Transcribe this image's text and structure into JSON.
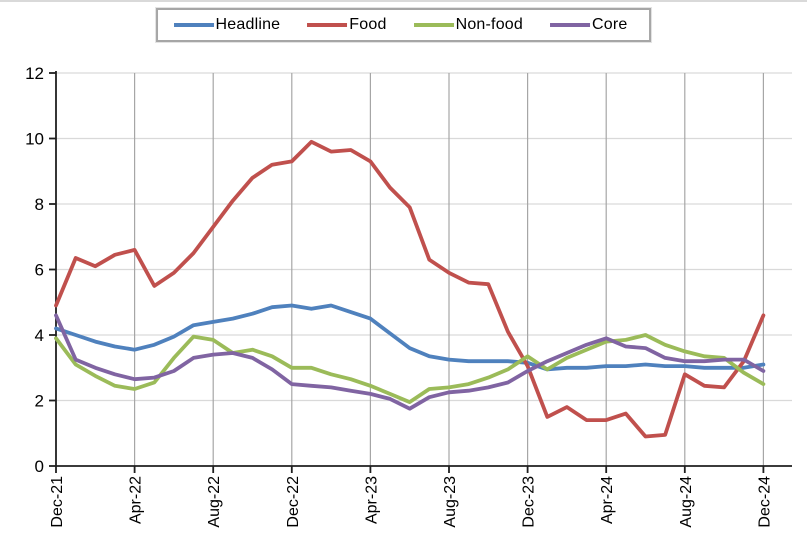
{
  "chart_data": {
    "type": "line",
    "title": "",
    "legend_position": "top-center",
    "ylim": [
      0,
      12
    ],
    "y_ticks": [
      "0",
      "2",
      "4",
      "6",
      "8",
      "10",
      "12"
    ],
    "x_tick_labels": [
      "Dec-21",
      "Apr-22",
      "Aug-22",
      "Dec-22",
      "Apr-23",
      "Aug-23",
      "Dec-23",
      "Apr-24",
      "Aug-24",
      "Dec-24"
    ],
    "x": [
      "Dec-21",
      "Jan-22",
      "Feb-22",
      "Mar-22",
      "Apr-22",
      "May-22",
      "Jun-22",
      "Jul-22",
      "Aug-22",
      "Sep-22",
      "Oct-22",
      "Nov-22",
      "Dec-22",
      "Jan-23",
      "Feb-23",
      "Mar-23",
      "Apr-23",
      "May-23",
      "Jun-23",
      "Jul-23",
      "Aug-23",
      "Sep-23",
      "Oct-23",
      "Nov-23",
      "Dec-23",
      "Jan-24",
      "Feb-24",
      "Mar-24",
      "Apr-24",
      "May-24",
      "Jun-24",
      "Jul-24",
      "Aug-24",
      "Sep-24",
      "Oct-24",
      "Nov-24",
      "Dec-24"
    ],
    "grid": {
      "horizontal_color": "#d9d9d9",
      "vertical_color": "#a6a6a6",
      "axis_color": "#1f1f1f"
    },
    "series": [
      {
        "name": "Headline",
        "color": "#4F81BD",
        "values": [
          4.2,
          4.0,
          3.8,
          3.65,
          3.55,
          3.7,
          3.95,
          4.3,
          4.4,
          4.5,
          4.65,
          4.85,
          4.9,
          4.8,
          4.9,
          4.7,
          4.5,
          4.05,
          3.6,
          3.35,
          3.25,
          3.2,
          3.2,
          3.2,
          3.15,
          2.95,
          3.0,
          3.0,
          3.05,
          3.05,
          3.1,
          3.05,
          3.05,
          3.0,
          3.0,
          3.0,
          3.1
        ]
      },
      {
        "name": "Food",
        "color": "#C0504D",
        "values": [
          4.9,
          6.35,
          6.1,
          6.45,
          6.6,
          5.5,
          5.9,
          6.5,
          7.3,
          8.1,
          8.8,
          9.2,
          9.3,
          9.9,
          9.6,
          9.65,
          9.3,
          8.5,
          7.9,
          6.3,
          5.9,
          5.6,
          5.55,
          4.1,
          3.05,
          1.5,
          1.8,
          1.4,
          1.4,
          1.6,
          0.9,
          0.95,
          2.8,
          2.45,
          2.4,
          3.2,
          4.6
        ]
      },
      {
        "name": "Non-food",
        "color": "#9BBB59",
        "values": [
          3.9,
          3.1,
          2.75,
          2.45,
          2.35,
          2.55,
          3.3,
          3.95,
          3.85,
          3.45,
          3.55,
          3.35,
          3.0,
          3.0,
          2.8,
          2.65,
          2.45,
          2.2,
          1.95,
          2.35,
          2.4,
          2.5,
          2.7,
          2.95,
          3.35,
          2.95,
          3.3,
          3.55,
          3.8,
          3.85,
          4.0,
          3.7,
          3.5,
          3.35,
          3.3,
          2.85,
          2.5
        ]
      },
      {
        "name": "Core",
        "color": "#8064A2",
        "values": [
          4.6,
          3.25,
          3.0,
          2.8,
          2.65,
          2.7,
          2.9,
          3.3,
          3.4,
          3.45,
          3.3,
          2.95,
          2.5,
          2.45,
          2.4,
          2.3,
          2.2,
          2.05,
          1.75,
          2.1,
          2.25,
          2.3,
          2.4,
          2.55,
          2.9,
          3.2,
          3.45,
          3.7,
          3.9,
          3.65,
          3.6,
          3.3,
          3.2,
          3.2,
          3.25,
          3.25,
          2.9
        ]
      }
    ]
  }
}
